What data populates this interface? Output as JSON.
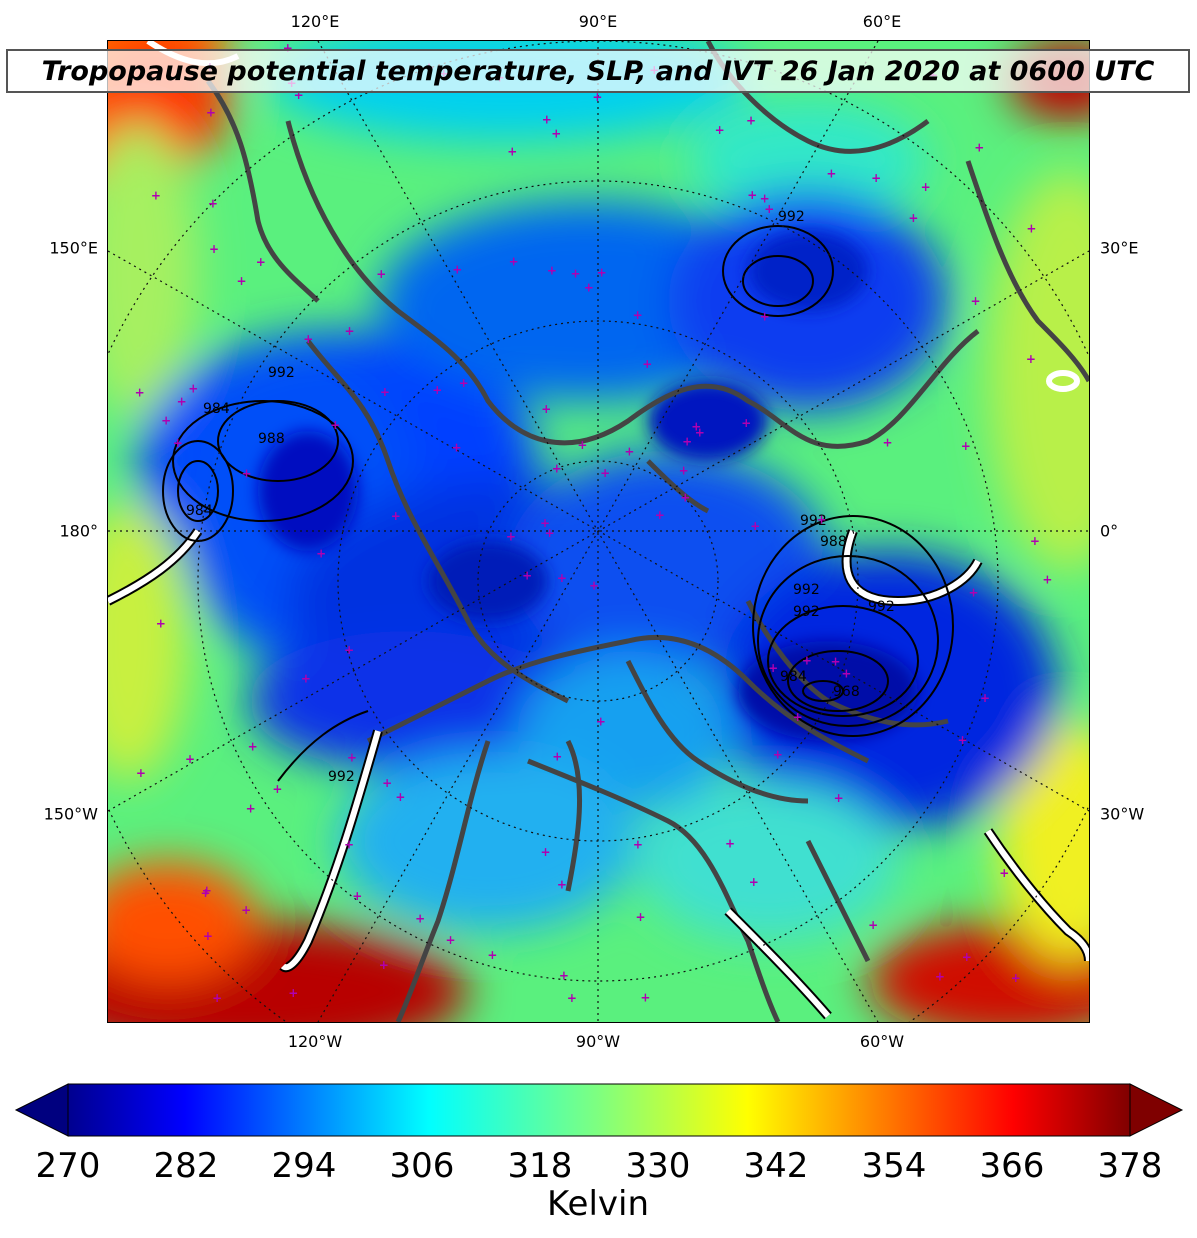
{
  "title": "Tropopause potential temperature, SLP, and IVT 26 Jan 2020 at 0600 UTC",
  "colorbar": {
    "label": "Kelvin",
    "ticks": [
      "270",
      "282",
      "294",
      "306",
      "318",
      "330",
      "342",
      "354",
      "366",
      "378"
    ],
    "min": 270,
    "max": 378,
    "colormap": "jet",
    "extend": "both"
  },
  "axes": {
    "top": [
      "120°E",
      "90°E",
      "60°E"
    ],
    "bottom": [
      "120°W",
      "90°W",
      "60°W"
    ],
    "left": [
      "150°E",
      "180°",
      "150°W"
    ],
    "right": [
      "30°E",
      "0°",
      "30°W"
    ]
  },
  "slp_contour_labels": [
    "992",
    "984",
    "988",
    "984",
    "992",
    "992",
    "988",
    "992",
    "992",
    "992",
    "984",
    "968",
    "992"
  ],
  "colors": {
    "coastline": "#444444",
    "slp_contour": "#000000",
    "ivt_contour": "#ffffff",
    "station_marker": "#b000b0"
  },
  "map": {
    "projection": "polar stereographic (north)",
    "fields": [
      "tropopause potential temperature (shaded)",
      "sea level pressure (black contours)",
      "IVT (white contours)"
    ]
  }
}
